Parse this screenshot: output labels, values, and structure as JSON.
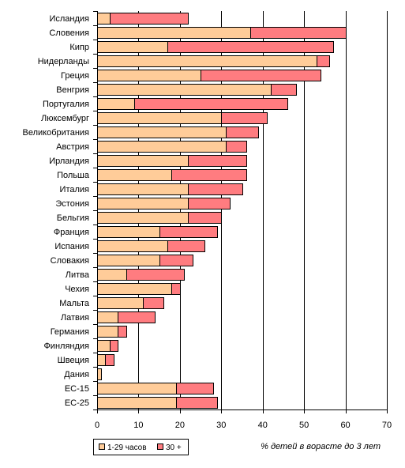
{
  "chart_data": {
    "type": "bar",
    "orientation": "horizontal",
    "stacked": true,
    "categories": [
      "Исландия",
      "Словения",
      "Кипр",
      "Нидерланды",
      "Греция",
      "Венгрия",
      "Португалия",
      "Люксембург",
      "Великобритания",
      "Австрия",
      "Ирландия",
      "Польша",
      "Италия",
      "Эстония",
      "Бельгия",
      "Франция",
      "Испания",
      "Словакия",
      "Литва",
      "Чехия",
      "Мальта",
      "Латвия",
      "Германия",
      "Финляндия",
      "Швеция",
      "Дания",
      "ЕС-15",
      "ЕС-25"
    ],
    "series": [
      {
        "name": "1-29 часов",
        "color": "#ffcc99",
        "values": [
          3,
          37,
          17,
          53,
          25,
          42,
          9,
          30,
          31,
          31,
          22,
          18,
          22,
          22,
          22,
          15,
          17,
          15,
          7,
          18,
          11,
          5,
          5,
          3,
          2,
          1,
          19,
          19
        ]
      },
      {
        "name": "30 +",
        "color": "#ff7c80",
        "values": [
          19,
          23,
          40,
          3,
          29,
          6,
          37,
          11,
          8,
          5,
          14,
          18,
          13,
          10,
          8,
          14,
          9,
          8,
          14,
          2,
          5,
          9,
          2,
          2,
          2,
          0,
          9,
          10
        ]
      }
    ],
    "xlim": [
      0,
      70
    ],
    "xticks": [
      "0",
      "10",
      "20",
      "30",
      "40",
      "50",
      "60",
      "70"
    ],
    "grid": true,
    "legend_position": "bottom-left",
    "xlabel": "% детей в вopacте до 3 лет"
  }
}
